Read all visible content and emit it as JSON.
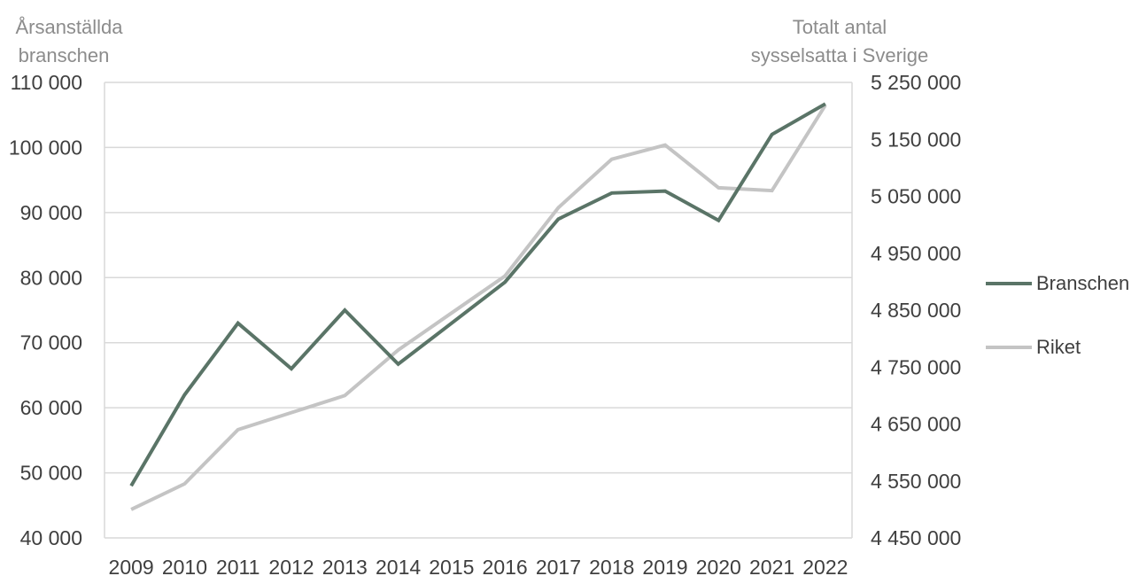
{
  "chart_data": {
    "type": "line",
    "x": [
      "2009",
      "2010",
      "2011",
      "2012",
      "2013",
      "2014",
      "2015",
      "2016",
      "2017",
      "2018",
      "2019",
      "2020",
      "2021",
      "2022"
    ],
    "y_left": {
      "title_lines": [
        "Årsanställda",
        "branschen"
      ],
      "ylim": [
        40000,
        110000
      ],
      "ticks": [
        "40 000",
        "50 000",
        "60 000",
        "70 000",
        "80 000",
        "90 000",
        "100 000",
        "110 000"
      ],
      "tick_values": [
        40000,
        50000,
        60000,
        70000,
        80000,
        90000,
        100000,
        110000
      ]
    },
    "y_right": {
      "title_lines": [
        "Totalt antal",
        "sysselsatta i Sverige"
      ],
      "ylim": [
        4450000,
        5250000
      ],
      "ticks": [
        "4 450 000",
        "4 550 000",
        "4 650 000",
        "4 750 000",
        "4 850 000",
        "4 950 000",
        "5 050 000",
        "5 150 000",
        "5 250 000"
      ],
      "tick_values": [
        4450000,
        4550000,
        4650000,
        4750000,
        4850000,
        4950000,
        5050000,
        5150000,
        5250000
      ]
    },
    "series": [
      {
        "name": "Branschen",
        "axis": "left",
        "color": "#5a7467",
        "values": [
          48000,
          62000,
          73000,
          66000,
          75000,
          66700,
          73000,
          79300,
          89000,
          93000,
          93300,
          88800,
          102000,
          106700
        ]
      },
      {
        "name": "Riket",
        "axis": "right",
        "color": "#c4c4c4",
        "values": [
          4500000,
          4545000,
          4640000,
          4670000,
          4700000,
          4780000,
          4845000,
          4910000,
          5030000,
          5115000,
          5140000,
          5065000,
          5060000,
          5210000
        ]
      }
    ],
    "grid": true,
    "legend": "right"
  }
}
